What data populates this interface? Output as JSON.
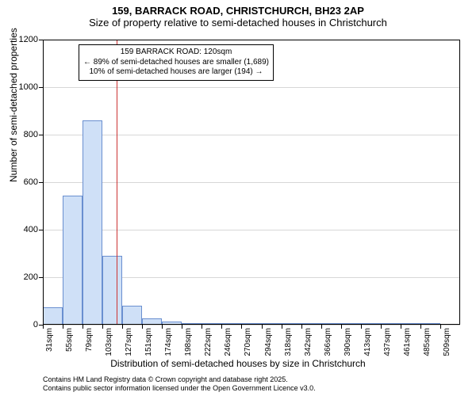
{
  "header": {
    "title": "159, BARRACK ROAD, CHRISTCHURCH, BH23 2AP",
    "subtitle": "Size of property relative to semi-detached houses in Christchurch"
  },
  "chart": {
    "type": "histogram",
    "background_color": "#ffffff",
    "grid_color": "#d7d7d7",
    "axis_color": "#000000",
    "bar_fill": "#cfe0f7",
    "bar_border": "#6a8fd0",
    "marker_color": "#cc3232",
    "ylim": [
      0,
      1200
    ],
    "ytick_step": 200,
    "y_ticks": [
      0,
      200,
      400,
      600,
      800,
      1000,
      1200
    ],
    "y_axis_label": "Number of semi-detached properties",
    "x_axis_label": "Distribution of semi-detached houses by size in Christchurch",
    "bin_width_sqm": 24,
    "marker_position_sqm": 120,
    "categories": [
      "31sqm",
      "55sqm",
      "79sqm",
      "103sqm",
      "127sqm",
      "151sqm",
      "174sqm",
      "198sqm",
      "222sqm",
      "246sqm",
      "270sqm",
      "294sqm",
      "318sqm",
      "342sqm",
      "366sqm",
      "390sqm",
      "413sqm",
      "437sqm",
      "461sqm",
      "485sqm",
      "509sqm"
    ],
    "values": [
      75,
      545,
      860,
      290,
      80,
      27,
      14,
      8,
      5,
      3,
      2,
      2,
      1,
      1,
      1,
      1,
      1,
      1,
      1,
      1,
      0
    ],
    "title_fontsize": 13,
    "label_fontsize": 12,
    "tick_fontsize": 11,
    "xtick_fontsize": 10
  },
  "annotation": {
    "line1": "159 BARRACK ROAD: 120sqm",
    "line2": "← 89% of semi-detached houses are smaller (1,689)",
    "line3": "10% of semi-detached houses are larger (194) →"
  },
  "footer": {
    "line1": "Contains HM Land Registry data © Crown copyright and database right 2025.",
    "line2": "Contains public sector information licensed under the Open Government Licence v3.0."
  }
}
